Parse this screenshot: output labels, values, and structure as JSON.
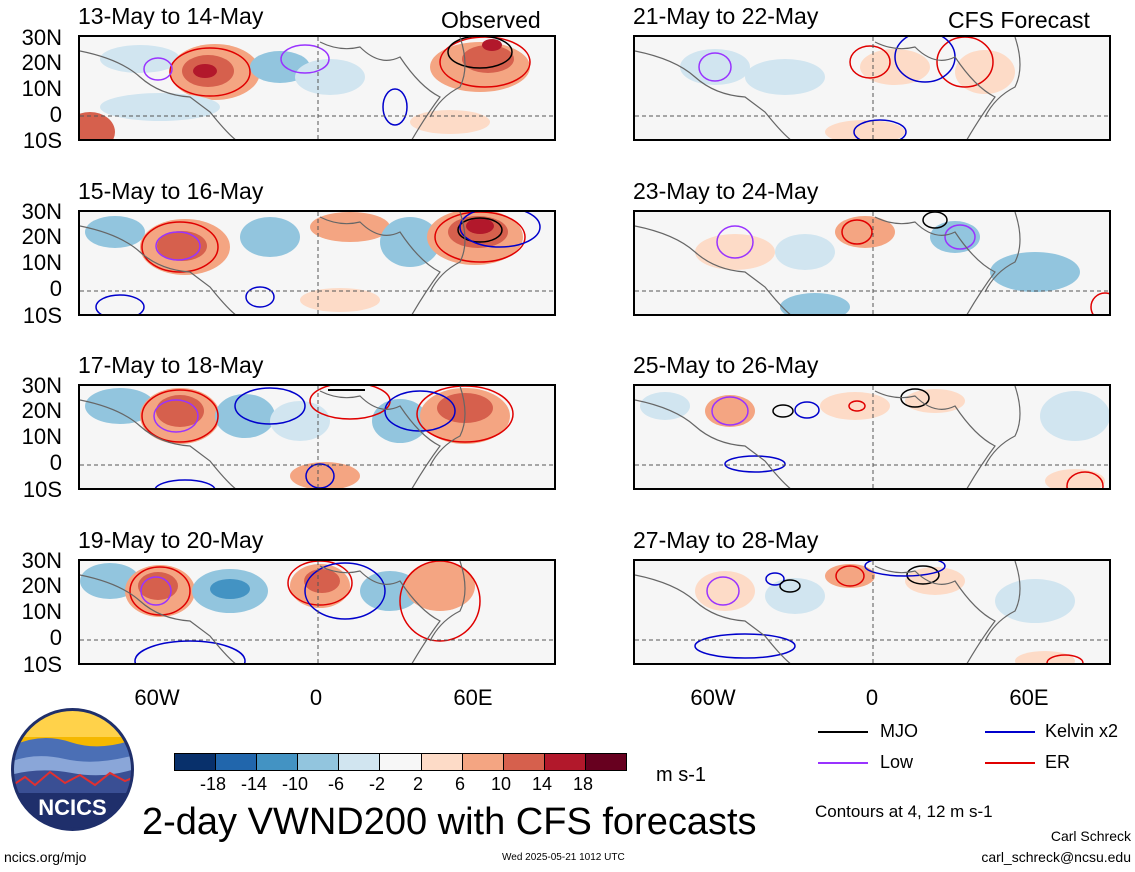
{
  "panels_left_tag": "Observed",
  "panels_right_tag": "CFS Forecast",
  "panels": [
    {
      "id": "p1",
      "title": "13-May to 14-May"
    },
    {
      "id": "p2",
      "title": "15-May to 16-May"
    },
    {
      "id": "p3",
      "title": "17-May to 18-May"
    },
    {
      "id": "p4",
      "title": "19-May to 20-May"
    },
    {
      "id": "p5",
      "title": "21-May to 22-May"
    },
    {
      "id": "p6",
      "title": "23-May to 24-May"
    },
    {
      "id": "p7",
      "title": "25-May to 26-May"
    },
    {
      "id": "p8",
      "title": "27-May to 28-May"
    }
  ],
  "lat_labels": [
    "30N",
    "20N",
    "10N",
    "0",
    "10S"
  ],
  "lon_labels": [
    "60W",
    "0",
    "60E"
  ],
  "colorbar": {
    "labels": [
      "-18",
      "-14",
      "-10",
      "-6",
      "-2",
      "2",
      "6",
      "10",
      "14",
      "18"
    ],
    "colors": [
      "#08306b",
      "#2166ac",
      "#4393c3",
      "#92c5de",
      "#d1e5f0",
      "#f7f7f7",
      "#fddbc7",
      "#f4a582",
      "#d6604d",
      "#b2182b",
      "#67001f"
    ],
    "units": "m s-1"
  },
  "legend": {
    "items": [
      {
        "label": "MJO",
        "color": "#000000"
      },
      {
        "label": "Kelvin x2",
        "color": "#0000cc"
      },
      {
        "label": "Low",
        "color": "#9933ff"
      },
      {
        "label": "ER",
        "color": "#e00000"
      }
    ],
    "contours_note": "Contours at 4, 12 m s-1"
  },
  "logo_text": "NCICS",
  "main_title": "2-day VWND200 with CFS forecasts",
  "footer": {
    "url": "ncics.org/mjo",
    "timestamp": "Wed 2025-05-21 1012 UTC",
    "author": "Carl Schreck",
    "email": "carl_schreck@ncsu.edu"
  }
}
